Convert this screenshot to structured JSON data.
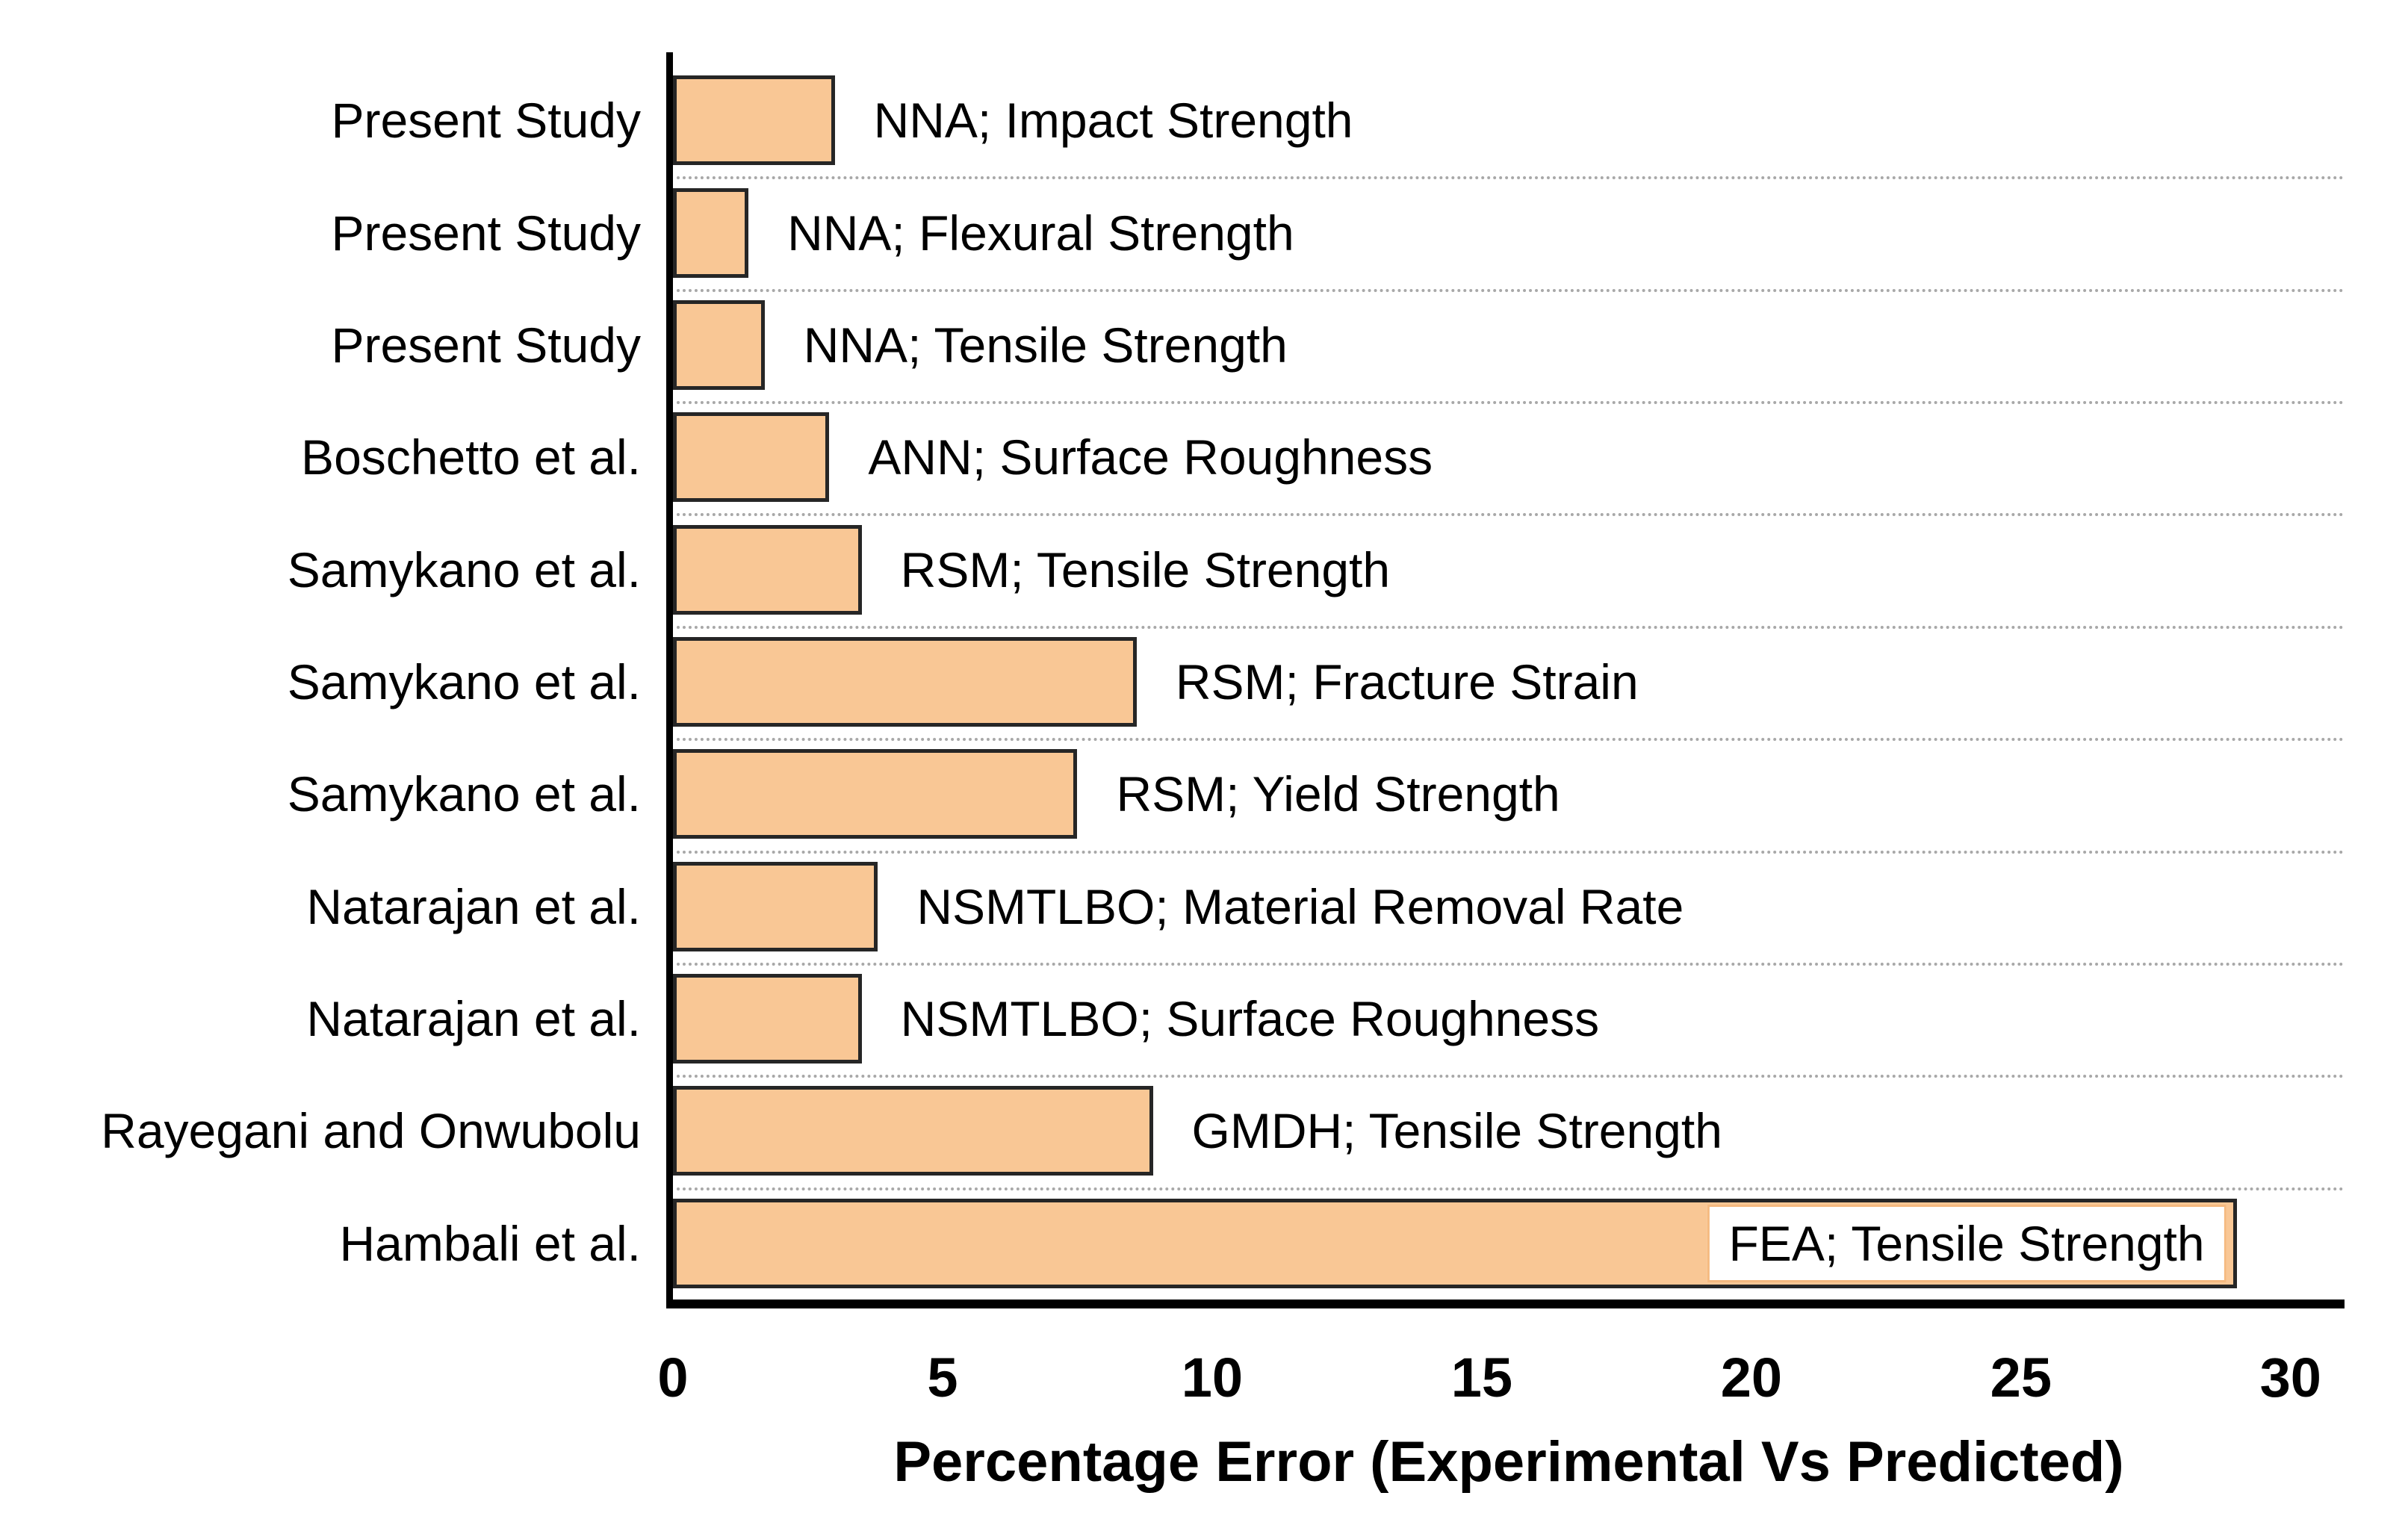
{
  "chart_data": {
    "type": "bar",
    "orientation": "horizontal",
    "xlabel": "Percentage Error (Experimental Vs Predicted)",
    "x_ticks": [
      0,
      5,
      10,
      15,
      20,
      25,
      30
    ],
    "xlim": [
      0,
      31
    ],
    "grid": "dotted horizontal category separators",
    "legend": "none",
    "categories": [
      "Present Study",
      "Present Study",
      "Present Study",
      "Boschetto et al.",
      "Samykano et al.",
      "Samykano et al.",
      "Samykano et al.",
      "Natarajan et al.",
      "Natarajan et al.",
      "Rayegani and Onwubolu",
      "Hambali et al."
    ],
    "values": [
      3.0,
      1.4,
      1.7,
      2.9,
      3.5,
      8.6,
      7.5,
      3.8,
      3.5,
      8.9,
      29.0
    ],
    "rows": [
      {
        "category": "Present Study",
        "label": "NNA; Impact Strength",
        "value": 3.0,
        "label_position": "outside-end"
      },
      {
        "category": "Present Study",
        "label": "NNA; Flexural Strength",
        "value": 1.4,
        "label_position": "outside-end"
      },
      {
        "category": "Present Study",
        "label": "NNA; Tensile Strength",
        "value": 1.7,
        "label_position": "outside-end"
      },
      {
        "category": "Boschetto et al.",
        "label": "ANN; Surface Roughness",
        "value": 2.9,
        "label_position": "outside-end"
      },
      {
        "category": "Samykano et al.",
        "label": "RSM; Tensile Strength",
        "value": 3.5,
        "label_position": "outside-end"
      },
      {
        "category": "Samykano et al.",
        "label": "RSM; Fracture Strain",
        "value": 8.6,
        "label_position": "outside-end"
      },
      {
        "category": "Samykano et al.",
        "label": "RSM; Yield Strength",
        "value": 7.5,
        "label_position": "outside-end"
      },
      {
        "category": "Natarajan et al.",
        "label": "NSMTLBO; Material Removal Rate",
        "value": 3.8,
        "label_position": "outside-end"
      },
      {
        "category": "Natarajan et al.",
        "label": "NSMTLBO; Surface Roughness",
        "value": 3.5,
        "label_position": "outside-end"
      },
      {
        "category": "Rayegani and Onwubolu",
        "label": "GMDH; Tensile Strength",
        "value": 8.9,
        "label_position": "outside-end"
      },
      {
        "category": "Hambali et al.",
        "label": "FEA; Tensile Strength",
        "value": 29.0,
        "label_position": "inside-end-white-box"
      }
    ],
    "colors": {
      "bar_fill": "#F9C795",
      "bar_border": "#262626",
      "gridline": "#A8A8A8",
      "axis": "#000000",
      "text": "#000000",
      "inside_label_box_bg": "#FFFFFF",
      "inside_label_box_border": "#F5BA80"
    }
  }
}
